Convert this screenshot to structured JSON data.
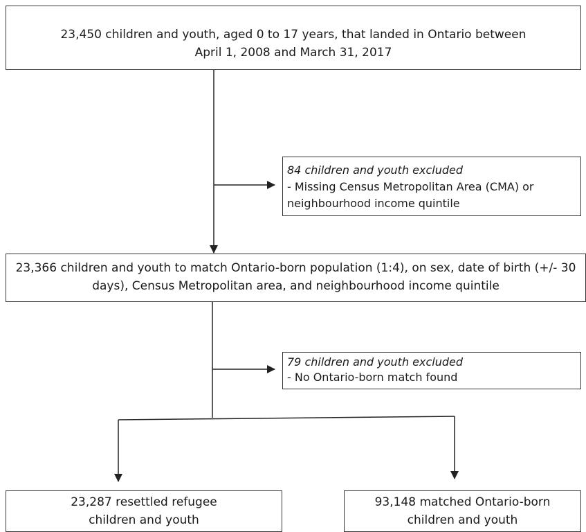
{
  "top_box": {
    "line1": "23,450 children and youth, aged 0 to 17 years, that landed in Ontario between",
    "line2": "April 1, 2008 and March 31, 2017"
  },
  "exclusion_1": {
    "title": "84 children and youth excluded",
    "line1": "- Missing Census Metropolitan Area (CMA) or",
    "line2": "neighbourhood income quintile"
  },
  "match_box": {
    "line1": "23,366 children and youth to match Ontario-born population (1:4), on sex, date of birth (+/- 30",
    "line2": "days), Census Metropolitan area, and neighbourhood income quintile"
  },
  "exclusion_2": {
    "title": "79 children and youth excluded",
    "line1": "- No Ontario-born match found"
  },
  "refugee_box": {
    "line1": "23,287 resettled refugee",
    "line2": "children and youth"
  },
  "matched_box": {
    "line1": "93,148 matched Ontario-born",
    "line2": "children and youth"
  }
}
